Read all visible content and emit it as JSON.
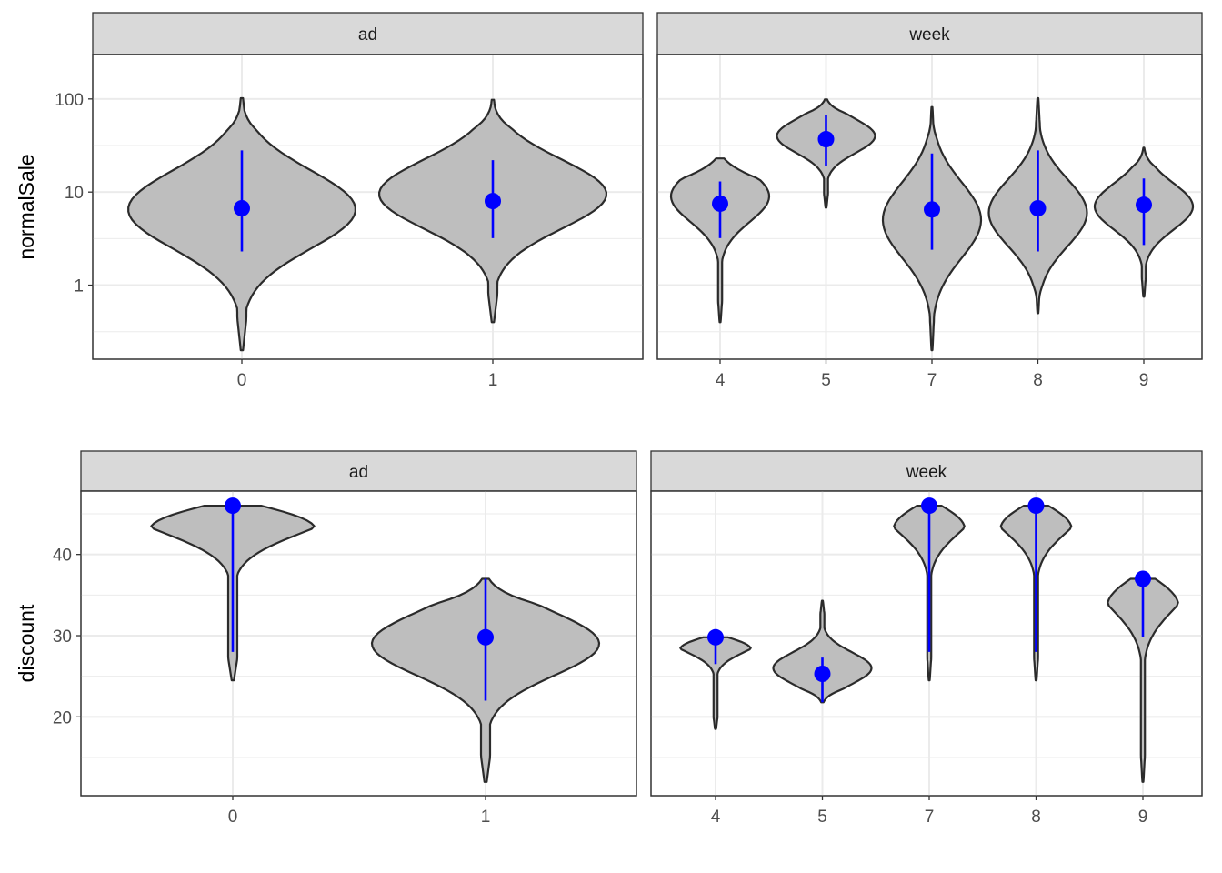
{
  "colors": {
    "violin_fill": "#bebebe",
    "violin_stroke": "#2b2b2b",
    "point": "#0000ff",
    "strip_bg": "#d9d9d9",
    "grid": "#ebebeb"
  },
  "chart_data": [
    {
      "id": "normalSale-ad",
      "type": "violin",
      "facet_label": "ad",
      "ylabel": "normalSale",
      "y_scale": "log10",
      "ylim": [
        0.16,
        300
      ],
      "y_ticks": [
        1,
        10,
        100
      ],
      "y_tick_labels": [
        "1",
        "10",
        "100"
      ],
      "categories": [
        "0",
        "1"
      ],
      "series": [
        {
          "category": "0",
          "min": 0.2,
          "max": 102,
          "mode": 6.5,
          "point": 6.7,
          "lower": 2.3,
          "upper": 28
        },
        {
          "category": "1",
          "min": 0.4,
          "max": 98,
          "mode": 9.5,
          "point": 8.0,
          "lower": 3.2,
          "upper": 22
        }
      ]
    },
    {
      "id": "normalSale-week",
      "type": "violin",
      "facet_label": "week",
      "ylabel": "normalSale",
      "y_scale": "log10",
      "ylim": [
        0.16,
        300
      ],
      "y_ticks": [
        1,
        10,
        100
      ],
      "y_tick_labels": [
        "1",
        "10",
        "100"
      ],
      "categories": [
        "4",
        "5",
        "7",
        "8",
        "9"
      ],
      "series": [
        {
          "category": "4",
          "min": 0.4,
          "max": 23,
          "mode": 9,
          "point": 7.5,
          "lower": 3.2,
          "upper": 13
        },
        {
          "category": "5",
          "min": 6.8,
          "max": 99,
          "mode": 40,
          "point": 37,
          "lower": 19,
          "upper": 68
        },
        {
          "category": "7",
          "min": 0.2,
          "max": 82,
          "mode": 5,
          "point": 6.5,
          "lower": 2.4,
          "upper": 26
        },
        {
          "category": "8",
          "min": 0.5,
          "max": 102,
          "mode": 6,
          "point": 6.7,
          "lower": 2.3,
          "upper": 28
        },
        {
          "category": "9",
          "min": 0.75,
          "max": 30,
          "mode": 7,
          "point": 7.3,
          "lower": 2.7,
          "upper": 14
        }
      ]
    },
    {
      "id": "discount-ad",
      "type": "violin",
      "facet_label": "ad",
      "ylabel": "discount",
      "y_scale": "linear",
      "ylim": [
        10.3,
        47.8
      ],
      "y_ticks": [
        20,
        30,
        40
      ],
      "y_tick_labels": [
        "20",
        "30",
        "40"
      ],
      "categories": [
        "0",
        "1"
      ],
      "series": [
        {
          "category": "0",
          "min": 24.5,
          "max": 46,
          "mode": 46,
          "point": 46,
          "lower": 28,
          "upper": 46
        },
        {
          "category": "1",
          "min": 12,
          "max": 37,
          "mode": 29,
          "point": 29.8,
          "lower": 22,
          "upper": 37
        }
      ]
    },
    {
      "id": "discount-week",
      "type": "violin",
      "facet_label": "week",
      "ylabel": "discount",
      "y_scale": "linear",
      "ylim": [
        10.3,
        47.8
      ],
      "y_ticks": [
        20,
        30,
        40
      ],
      "y_tick_labels": [
        "20",
        "30",
        "40"
      ],
      "categories": [
        "4",
        "5",
        "7",
        "8",
        "9"
      ],
      "series": [
        {
          "category": "4",
          "min": 18.5,
          "max": 29.8,
          "mode": 29.8,
          "point": 29.8,
          "lower": 26.5,
          "upper": 29.8
        },
        {
          "category": "5",
          "min": 21.8,
          "max": 34.3,
          "mode": 26,
          "point": 25.3,
          "lower": 21.8,
          "upper": 27.3
        },
        {
          "category": "7",
          "min": 24.5,
          "max": 46,
          "mode": 46,
          "point": 46,
          "lower": 28,
          "upper": 46
        },
        {
          "category": "8",
          "min": 24.5,
          "max": 46,
          "mode": 46,
          "point": 46,
          "lower": 28,
          "upper": 46
        },
        {
          "category": "9",
          "min": 12,
          "max": 37,
          "mode": 37,
          "point": 37,
          "lower": 29.8,
          "upper": 37
        }
      ]
    }
  ]
}
